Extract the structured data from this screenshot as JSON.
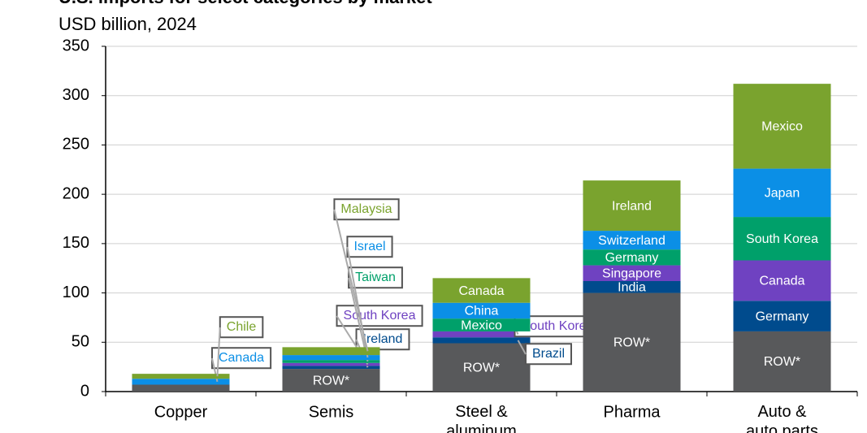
{
  "chart_data": {
    "type": "stacked-bar",
    "title": "U.S. imports for select categories by market",
    "subtitle": "USD billion, 2024",
    "categories": [
      "Copper",
      "Semis",
      "Steel & aluminum",
      "Pharma",
      "Auto & auto parts"
    ],
    "stacks": [
      [
        {
          "name": null,
          "color": "#58595b",
          "value": 7
        },
        {
          "name": "Canada",
          "color": "#0b8fe6",
          "value": 6
        },
        {
          "name": "Chile",
          "color": "#7aa32e",
          "value": 5
        }
      ],
      [
        {
          "name": "ROW*",
          "color": "#58595b",
          "value": 23
        },
        {
          "name": "Ireland",
          "color": "#004b8d",
          "value": 3
        },
        {
          "name": "South Korea",
          "color": "#6f42c1",
          "value": 3
        },
        {
          "name": "Taiwan",
          "color": "#00a06a",
          "value": 3
        },
        {
          "name": "Israel",
          "color": "#0b8fe6",
          "value": 5
        },
        {
          "name": "Malaysia",
          "color": "#7aa32e",
          "value": 8
        }
      ],
      [
        {
          "name": "ROW*",
          "color": "#58595b",
          "value": 49
        },
        {
          "name": "Brazil",
          "color": "#004b8d",
          "value": 6
        },
        {
          "name": "South Korea",
          "color": "#6f42c1",
          "value": 6
        },
        {
          "name": "Mexico",
          "color": "#00a06a",
          "value": 13
        },
        {
          "name": "China",
          "color": "#0b8fe6",
          "value": 16
        },
        {
          "name": "Canada",
          "color": "#7aa32e",
          "value": 25
        }
      ],
      [
        {
          "name": "ROW*",
          "color": "#58595b",
          "value": 100
        },
        {
          "name": "India",
          "color": "#004b8d",
          "value": 12
        },
        {
          "name": "Singapore",
          "color": "#6f42c1",
          "value": 16
        },
        {
          "name": "Germany",
          "color": "#00a06a",
          "value": 16
        },
        {
          "name": "Switzerland",
          "color": "#0b8fe6",
          "value": 19
        },
        {
          "name": "Ireland",
          "color": "#7aa32e",
          "value": 51
        }
      ],
      [
        {
          "name": "ROW*",
          "color": "#58595b",
          "value": 61
        },
        {
          "name": "Germany",
          "color": "#004b8d",
          "value": 31
        },
        {
          "name": "Canada",
          "color": "#6f42c1",
          "value": 41
        },
        {
          "name": "South Korea",
          "color": "#00a06a",
          "value": 44
        },
        {
          "name": "Japan",
          "color": "#0b8fe6",
          "value": 49
        },
        {
          "name": "Mexico",
          "color": "#7aa32e",
          "value": 86
        }
      ]
    ],
    "ylim": [
      0,
      350
    ],
    "yticks": [
      0,
      50,
      100,
      150,
      200,
      250,
      300,
      350
    ],
    "grid": true
  }
}
